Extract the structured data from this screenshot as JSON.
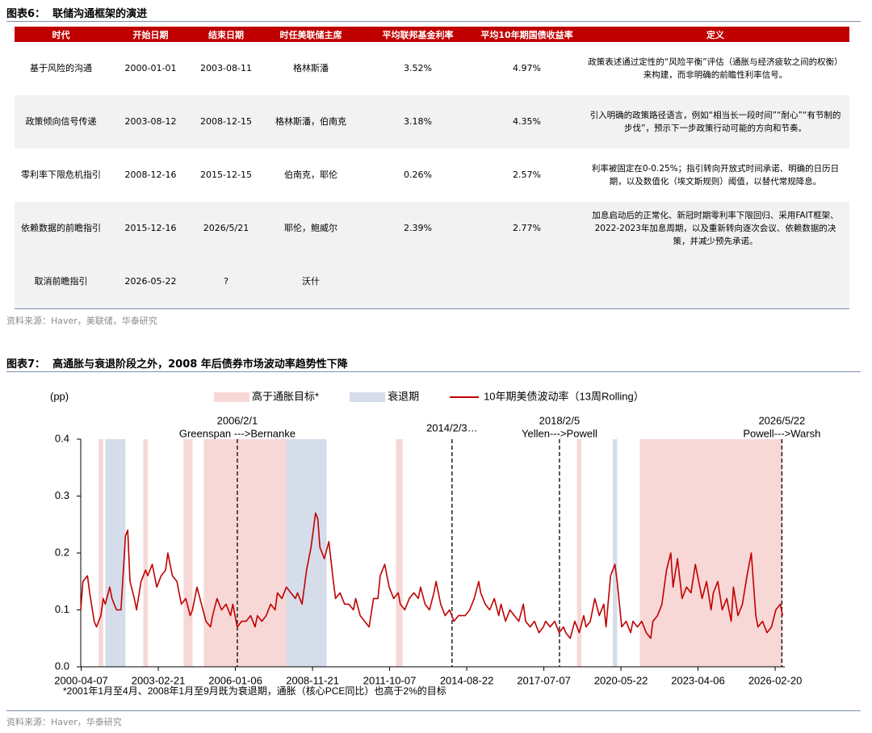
{
  "figure6": {
    "title": "图表6：  联储沟通框架的演进",
    "table": {
      "header": [
        "时代",
        "开始日期",
        "结束日期",
        "时任美联储主席",
        "平均联邦基金利率",
        "平均10年期国债收益率",
        "定义"
      ],
      "rows": [
        [
          "基于风险的沟通",
          "2000-01-01",
          "2003-08-11",
          "格林斯潘",
          "3.52%",
          "4.97%",
          "政策表述通过定性的“风险平衡”评估（通胀与经济疲软之间的权衡）来构建，而非明确的前瞻性利率信号。"
        ],
        [
          "政策倾向信号传递",
          "2003-08-12",
          "2008-12-15",
          "格林斯潘，伯南克",
          "3.18%",
          "4.35%",
          "引入明确的政策路径语言，例如“相当长一段时间”“耐心”“有节制的步伐”，预示下一步政策行动可能的方向和节奏。"
        ],
        [
          "零利率下限危机指引",
          "2008-12-16",
          "2015-12-15",
          "伯南克，耶伦",
          "0.26%",
          "2.57%",
          "利率被固定在0-0.25%；指引转向开放式时间承诺、明确的日历日期，以及数值化（埃文斯规则）阈值，以替代常规降息。"
        ],
        [
          "依赖数据的前瞻指引",
          "2015-12-16",
          "2026/5/21",
          "耶伦，鲍威尔",
          "2.39%",
          "2.77%",
          "加息启动后的正常化、新冠时期零利率下限回归、采用FAIT框架、2022-2023年加息周期，以及重新转向逐次会议、依赖数据的决策，并减少预先承诺。"
        ],
        [
          "取消前瞻指引",
          "2026-05-22",
          "?",
          "沃什"
        ]
      ]
    },
    "source": "资料来源：Haver，美联储，华泰研究"
  },
  "figure7": {
    "title": "图表7：  高通胀与衰退阶段之外，2008 年后债券市场波动率趋势性下降",
    "footnote": "*2001年1月至4月、2008年1月至9月既为衰退期，通胀（核心PCE同比）也高于2%的目标",
    "source": "资料来源：Haver，华泰研究"
  },
  "chart_data": {
    "type": "line",
    "y_label": "(pp)",
    "legend": "top",
    "grid": false,
    "xlim": [
      "2000-04-01",
      "2026-07-01"
    ],
    "xticks": [
      "2000-04-07",
      "2003-02-21",
      "2006-01-06",
      "2008-11-21",
      "2011-10-07",
      "2014-08-22",
      "2017-07-07",
      "2020-05-22",
      "2023-04-06",
      "2026-02-20"
    ],
    "ylim": [
      0,
      0.4
    ],
    "yticks": [
      {
        "value": 0,
        "label": "0.0"
      },
      0.1,
      0.2,
      0.3,
      0.4
    ],
    "bands": [
      {
        "name": "高于通胀目标*",
        "color": "#f8d7d7",
        "ranges": [
          [
            "2000-12-01",
            "2001-02-01"
          ],
          [
            "2002-08-01",
            "2002-10-01"
          ],
          [
            "2004-02-01",
            "2004-06-01"
          ],
          [
            "2004-11-01",
            "2008-10-01"
          ],
          [
            "2012-01-01",
            "2012-04-01"
          ],
          [
            "2018-10-01",
            "2018-12-01"
          ],
          [
            "2021-02-01",
            "2026-06-01"
          ]
        ]
      },
      {
        "name": "衰退期",
        "color": "#d5dcea",
        "ranges": [
          [
            "2001-03-01",
            "2001-12-01"
          ],
          [
            "2007-12-01",
            "2009-06-01"
          ],
          [
            "2020-02-01",
            "2020-04-01"
          ]
        ]
      }
    ],
    "annotations": [
      {
        "x": "2006-02-01",
        "lines": [
          "2006/2/1",
          "Greenspan --->Bernanke"
        ]
      },
      {
        "x": "2014-02-03",
        "lines": [
          "2014/2/3…"
        ]
      },
      {
        "x": "2018-02-05",
        "lines": [
          "2018/2/5",
          "Yellen--->Powell"
        ]
      },
      {
        "x": "2026-05-22",
        "lines": [
          "2026/5/22",
          "Powell--->Warsh"
        ]
      }
    ],
    "x": [
      "2000-04-01",
      "2000-05-01",
      "2000-07-01",
      "2000-08-01",
      "2000-10-01",
      "2000-11-01",
      "2001-01-01",
      "2001-02-01",
      "2001-03-01",
      "2001-05-01",
      "2001-06-01",
      "2001-08-01",
      "2001-10-01",
      "2001-12-01",
      "2002-01-01",
      "2002-02-01",
      "2002-04-01",
      "2002-05-01",
      "2002-07-01",
      "2002-09-01",
      "2002-10-01",
      "2002-12-01",
      "2003-02-01",
      "2003-04-01",
      "2003-06-01",
      "2003-07-01",
      "2003-09-01",
      "2003-11-01",
      "2004-01-01",
      "2004-03-01",
      "2004-05-01",
      "2004-06-01",
      "2004-08-01",
      "2004-10-01",
      "2004-12-01",
      "2005-02-01",
      "2005-03-01",
      "2005-05-01",
      "2005-07-01",
      "2005-09-01",
      "2005-11-01",
      "2005-12-01",
      "2006-02-01",
      "2006-04-01",
      "2006-06-01",
      "2006-08-01",
      "2006-10-01",
      "2006-11-01",
      "2007-01-01",
      "2007-03-01",
      "2007-05-01",
      "2007-07-01",
      "2007-08-01",
      "2007-10-01",
      "2007-12-01",
      "2008-02-01",
      "2008-04-01",
      "2008-05-01",
      "2008-07-01",
      "2008-09-01",
      "2008-11-01",
      "2009-01-01",
      "2009-02-01",
      "2009-03-01",
      "2009-05-01",
      "2009-07-01",
      "2009-09-01",
      "2009-10-01",
      "2009-12-01",
      "2010-02-01",
      "2010-04-01",
      "2010-06-01",
      "2010-07-01",
      "2010-09-01",
      "2010-11-01",
      "2011-01-01",
      "2011-03-01",
      "2011-05-01",
      "2011-06-01",
      "2011-08-01",
      "2011-10-01",
      "2011-12-01",
      "2012-02-01",
      "2012-03-01",
      "2012-05-01",
      "2012-07-01",
      "2012-09-01",
      "2012-11-01",
      "2012-12-01",
      "2013-02-01",
      "2013-04-01",
      "2013-06-01",
      "2013-07-01",
      "2013-09-01",
      "2013-11-01",
      "2014-01-01",
      "2014-03-01",
      "2014-05-01",
      "2014-06-01",
      "2014-08-01",
      "2014-10-01",
      "2014-12-01",
      "2015-02-01",
      "2015-03-01",
      "2015-05-01",
      "2015-07-01",
      "2015-09-01",
      "2015-11-01",
      "2015-12-01",
      "2016-02-01",
      "2016-04-01",
      "2016-06-01",
      "2016-08-01",
      "2016-10-01",
      "2016-11-01",
      "2017-01-01",
      "2017-03-01",
      "2017-05-01",
      "2017-07-01",
      "2017-08-01",
      "2017-10-01",
      "2017-12-01",
      "2018-02-01",
      "2018-04-01",
      "2018-05-01",
      "2018-07-01",
      "2018-09-01",
      "2018-11-01",
      "2019-01-01",
      "2019-02-01",
      "2019-04-01",
      "2019-06-01",
      "2019-08-01",
      "2019-10-01",
      "2019-11-01",
      "2020-01-01",
      "2020-03-01",
      "2020-04-01",
      "2020-06-01",
      "2020-08-01",
      "2020-10-01",
      "2020-11-01",
      "2021-01-01",
      "2021-03-01",
      "2021-05-01",
      "2021-07-01",
      "2021-08-01",
      "2021-10-01",
      "2021-12-01",
      "2022-02-01",
      "2022-04-01",
      "2022-05-01",
      "2022-07-01",
      "2022-09-01",
      "2022-11-01",
      "2023-01-01",
      "2023-03-01",
      "2023-04-01",
      "2023-06-01",
      "2023-08-01",
      "2023-10-01",
      "2023-11-01",
      "2024-01-01",
      "2024-03-01",
      "2024-05-01",
      "2024-07-01",
      "2024-08-01",
      "2024-10-01",
      "2024-12-01",
      "2025-02-01",
      "2025-04-01",
      "2025-06-01",
      "2025-07-01",
      "2025-09-01",
      "2025-11-01",
      "2026-01-01",
      "2026-03-01",
      "2026-05-01",
      "2026-06-01"
    ],
    "series": [
      {
        "name": "10年期美债波动率（13周Rolling）",
        "color": "#c00000",
        "values": [
          0.1,
          0.15,
          0.16,
          0.13,
          0.08,
          0.07,
          0.09,
          0.12,
          0.11,
          0.14,
          0.12,
          0.1,
          0.1,
          0.23,
          0.24,
          0.15,
          0.12,
          0.1,
          0.15,
          0.17,
          0.16,
          0.18,
          0.14,
          0.16,
          0.17,
          0.2,
          0.16,
          0.15,
          0.11,
          0.12,
          0.09,
          0.1,
          0.14,
          0.11,
          0.08,
          0.07,
          0.09,
          0.12,
          0.1,
          0.11,
          0.09,
          0.11,
          0.07,
          0.08,
          0.08,
          0.09,
          0.07,
          0.09,
          0.08,
          0.09,
          0.11,
          0.1,
          0.13,
          0.12,
          0.14,
          0.13,
          0.12,
          0.13,
          0.11,
          0.17,
          0.21,
          0.27,
          0.26,
          0.21,
          0.19,
          0.22,
          0.15,
          0.12,
          0.13,
          0.11,
          0.11,
          0.1,
          0.12,
          0.09,
          0.08,
          0.07,
          0.12,
          0.12,
          0.16,
          0.18,
          0.14,
          0.12,
          0.13,
          0.11,
          0.1,
          0.12,
          0.13,
          0.12,
          0.14,
          0.11,
          0.1,
          0.13,
          0.15,
          0.11,
          0.09,
          0.1,
          0.08,
          0.09,
          0.09,
          0.09,
          0.1,
          0.12,
          0.15,
          0.13,
          0.11,
          0.1,
          0.12,
          0.09,
          0.11,
          0.08,
          0.1,
          0.09,
          0.08,
          0.11,
          0.08,
          0.07,
          0.08,
          0.06,
          0.07,
          0.08,
          0.07,
          0.08,
          0.06,
          0.07,
          0.06,
          0.05,
          0.08,
          0.06,
          0.09,
          0.07,
          0.08,
          0.12,
          0.09,
          0.11,
          0.07,
          0.16,
          0.18,
          0.15,
          0.07,
          0.08,
          0.06,
          0.08,
          0.07,
          0.08,
          0.06,
          0.05,
          0.08,
          0.09,
          0.11,
          0.17,
          0.2,
          0.14,
          0.19,
          0.12,
          0.14,
          0.13,
          0.18,
          0.16,
          0.12,
          0.15,
          0.1,
          0.13,
          0.15,
          0.1,
          0.12,
          0.08,
          0.14,
          0.09,
          0.11,
          0.16,
          0.2,
          0.09,
          0.07,
          0.08,
          0.06,
          0.07,
          0.1,
          0.11,
          0.09
        ]
      }
    ]
  }
}
